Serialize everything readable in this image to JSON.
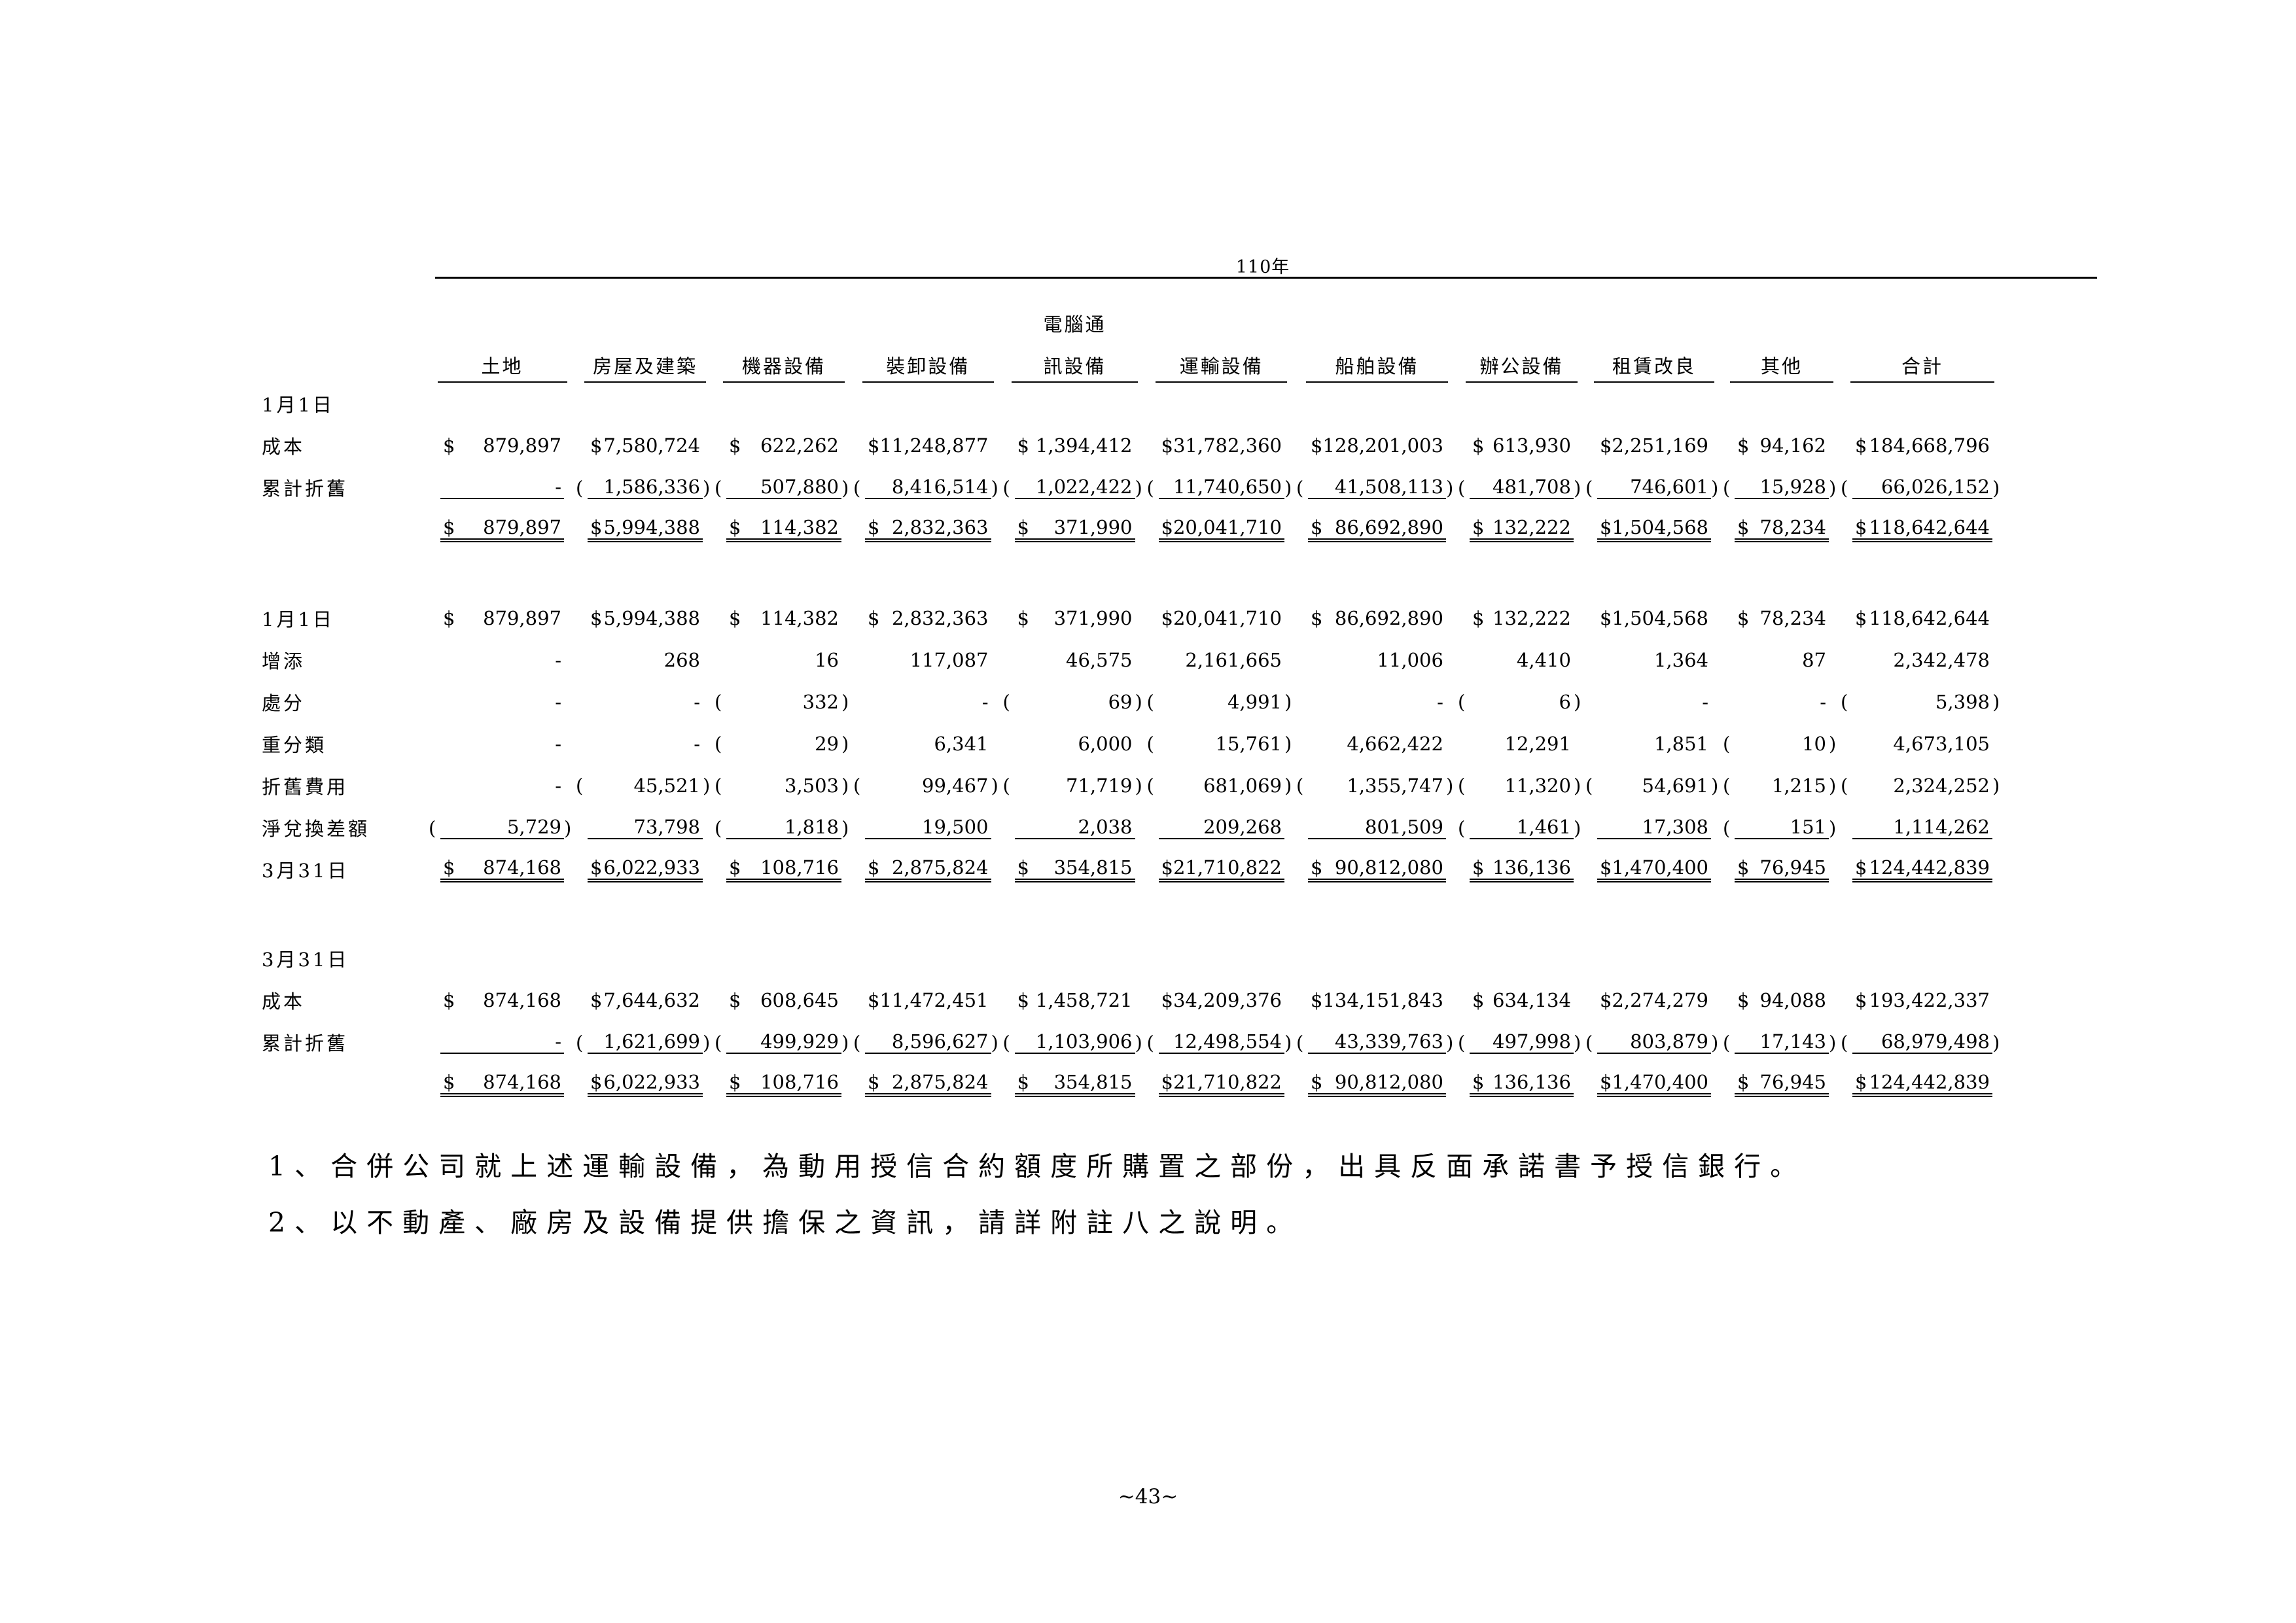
{
  "year_title": "110年",
  "columns": [
    {
      "top": "",
      "bottom": "土地"
    },
    {
      "top": "",
      "bottom": "房屋及建築"
    },
    {
      "top": "",
      "bottom": "機器設備"
    },
    {
      "top": "",
      "bottom": "裝卸設備"
    },
    {
      "top": "電腦通",
      "bottom": "訊設備"
    },
    {
      "top": "",
      "bottom": "運輸設備"
    },
    {
      "top": "",
      "bottom": "船舶設備"
    },
    {
      "top": "",
      "bottom": "辦公設備"
    },
    {
      "top": "",
      "bottom": "租賃改良"
    },
    {
      "top": "",
      "bottom": "其他"
    },
    {
      "top": "",
      "bottom": "合計"
    }
  ],
  "sections": [
    {
      "rows": [
        {
          "label": "1月1日",
          "cells": []
        },
        {
          "label": "成本",
          "cells": [
            {
              "cur": "$",
              "v": "879,897"
            },
            {
              "cur": "$",
              "v": "7,580,724"
            },
            {
              "cur": "$",
              "v": "622,262"
            },
            {
              "cur": "$",
              "v": "11,248,877"
            },
            {
              "cur": "$",
              "v": "1,394,412"
            },
            {
              "cur": "$",
              "v": "31,782,360"
            },
            {
              "cur": "$",
              "v": "128,201,003"
            },
            {
              "cur": "$",
              "v": "613,930"
            },
            {
              "cur": "$",
              "v": "2,251,169"
            },
            {
              "cur": "$",
              "v": "94,162"
            },
            {
              "cur": "$",
              "v": "184,668,796"
            }
          ]
        },
        {
          "label": "累計折舊",
          "line": "ul",
          "cells": [
            {
              "v": "-"
            },
            {
              "v": "1,586,336",
              "neg": true
            },
            {
              "v": "507,880",
              "neg": true
            },
            {
              "v": "8,416,514",
              "neg": true
            },
            {
              "v": "1,022,422",
              "neg": true
            },
            {
              "v": "11,740,650",
              "neg": true
            },
            {
              "v": "41,508,113",
              "neg": true
            },
            {
              "v": "481,708",
              "neg": true
            },
            {
              "v": "746,601",
              "neg": true
            },
            {
              "v": "15,928",
              "neg": true
            },
            {
              "v": "66,026,152",
              "neg": true
            }
          ]
        },
        {
          "label": "",
          "line": "dul",
          "cells": [
            {
              "cur": "$",
              "v": "879,897"
            },
            {
              "cur": "$",
              "v": "5,994,388"
            },
            {
              "cur": "$",
              "v": "114,382"
            },
            {
              "cur": "$",
              "v": "2,832,363"
            },
            {
              "cur": "$",
              "v": "371,990"
            },
            {
              "cur": "$",
              "v": "20,041,710"
            },
            {
              "cur": "$",
              "v": "86,692,890"
            },
            {
              "cur": "$",
              "v": "132,222"
            },
            {
              "cur": "$",
              "v": "1,504,568"
            },
            {
              "cur": "$",
              "v": "78,234"
            },
            {
              "cur": "$",
              "v": "118,642,644"
            }
          ]
        }
      ]
    },
    {
      "rows": [
        {
          "label": "1月1日",
          "cells": [
            {
              "cur": "$",
              "v": "879,897"
            },
            {
              "cur": "$",
              "v": "5,994,388"
            },
            {
              "cur": "$",
              "v": "114,382"
            },
            {
              "cur": "$",
              "v": "2,832,363"
            },
            {
              "cur": "$",
              "v": "371,990"
            },
            {
              "cur": "$",
              "v": "20,041,710"
            },
            {
              "cur": "$",
              "v": "86,692,890"
            },
            {
              "cur": "$",
              "v": "132,222"
            },
            {
              "cur": "$",
              "v": "1,504,568"
            },
            {
              "cur": "$",
              "v": "78,234"
            },
            {
              "cur": "$",
              "v": "118,642,644"
            }
          ]
        },
        {
          "label": "增添",
          "cells": [
            {
              "v": "-"
            },
            {
              "v": "268"
            },
            {
              "v": "16"
            },
            {
              "v": "117,087"
            },
            {
              "v": "46,575"
            },
            {
              "v": "2,161,665"
            },
            {
              "v": "11,006"
            },
            {
              "v": "4,410"
            },
            {
              "v": "1,364"
            },
            {
              "v": "87"
            },
            {
              "v": "2,342,478"
            }
          ]
        },
        {
          "label": "處分",
          "cells": [
            {
              "v": "-"
            },
            {
              "v": "-"
            },
            {
              "v": "332",
              "neg": true
            },
            {
              "v": "-"
            },
            {
              "v": "69",
              "neg": true
            },
            {
              "v": "4,991",
              "neg": true
            },
            {
              "v": "-"
            },
            {
              "v": "6",
              "neg": true
            },
            {
              "v": "-"
            },
            {
              "v": "-"
            },
            {
              "v": "5,398",
              "neg": true
            }
          ]
        },
        {
          "label": "重分類",
          "cells": [
            {
              "v": "-"
            },
            {
              "v": "-"
            },
            {
              "v": "29",
              "neg": true
            },
            {
              "v": "6,341"
            },
            {
              "v": "6,000"
            },
            {
              "v": "15,761",
              "neg": true
            },
            {
              "v": "4,662,422"
            },
            {
              "v": "12,291"
            },
            {
              "v": "1,851"
            },
            {
              "v": "10",
              "neg": true
            },
            {
              "v": "4,673,105"
            }
          ]
        },
        {
          "label": "折舊費用",
          "cells": [
            {
              "v": "-"
            },
            {
              "v": "45,521",
              "neg": true
            },
            {
              "v": "3,503",
              "neg": true
            },
            {
              "v": "99,467",
              "neg": true
            },
            {
              "v": "71,719",
              "neg": true
            },
            {
              "v": "681,069",
              "neg": true
            },
            {
              "v": "1,355,747",
              "neg": true
            },
            {
              "v": "11,320",
              "neg": true
            },
            {
              "v": "54,691",
              "neg": true
            },
            {
              "v": "1,215",
              "neg": true
            },
            {
              "v": "2,324,252",
              "neg": true
            }
          ]
        },
        {
          "label": "淨兌換差額",
          "line": "ul",
          "cells": [
            {
              "v": "5,729",
              "neg": true
            },
            {
              "v": "73,798"
            },
            {
              "v": "1,818",
              "neg": true
            },
            {
              "v": "19,500"
            },
            {
              "v": "2,038"
            },
            {
              "v": "209,268"
            },
            {
              "v": "801,509"
            },
            {
              "v": "1,461",
              "neg": true
            },
            {
              "v": "17,308"
            },
            {
              "v": "151",
              "neg": true
            },
            {
              "v": "1,114,262"
            }
          ]
        },
        {
          "label": "3月31日",
          "line": "dul",
          "cells": [
            {
              "cur": "$",
              "v": "874,168"
            },
            {
              "cur": "$",
              "v": "6,022,933"
            },
            {
              "cur": "$",
              "v": "108,716"
            },
            {
              "cur": "$",
              "v": "2,875,824"
            },
            {
              "cur": "$",
              "v": "354,815"
            },
            {
              "cur": "$",
              "v": "21,710,822"
            },
            {
              "cur": "$",
              "v": "90,812,080"
            },
            {
              "cur": "$",
              "v": "136,136"
            },
            {
              "cur": "$",
              "v": "1,470,400"
            },
            {
              "cur": "$",
              "v": "76,945"
            },
            {
              "cur": "$",
              "v": "124,442,839"
            }
          ]
        }
      ]
    },
    {
      "rows": [
        {
          "label": "3月31日",
          "cells": []
        },
        {
          "label": "成本",
          "cells": [
            {
              "cur": "$",
              "v": "874,168"
            },
            {
              "cur": "$",
              "v": "7,644,632"
            },
            {
              "cur": "$",
              "v": "608,645"
            },
            {
              "cur": "$",
              "v": "11,472,451"
            },
            {
              "cur": "$",
              "v": "1,458,721"
            },
            {
              "cur": "$",
              "v": "34,209,376"
            },
            {
              "cur": "$",
              "v": "134,151,843"
            },
            {
              "cur": "$",
              "v": "634,134"
            },
            {
              "cur": "$",
              "v": "2,274,279"
            },
            {
              "cur": "$",
              "v": "94,088"
            },
            {
              "cur": "$",
              "v": "193,422,337"
            }
          ]
        },
        {
          "label": "累計折舊",
          "line": "ul",
          "cells": [
            {
              "v": "-"
            },
            {
              "v": "1,621,699",
              "neg": true
            },
            {
              "v": "499,929",
              "neg": true
            },
            {
              "v": "8,596,627",
              "neg": true
            },
            {
              "v": "1,103,906",
              "neg": true
            },
            {
              "v": "12,498,554",
              "neg": true
            },
            {
              "v": "43,339,763",
              "neg": true
            },
            {
              "v": "497,998",
              "neg": true
            },
            {
              "v": "803,879",
              "neg": true
            },
            {
              "v": "17,143",
              "neg": true
            },
            {
              "v": "68,979,498",
              "neg": true
            }
          ]
        },
        {
          "label": "",
          "line": "dul",
          "cells": [
            {
              "cur": "$",
              "v": "874,168"
            },
            {
              "cur": "$",
              "v": "6,022,933"
            },
            {
              "cur": "$",
              "v": "108,716"
            },
            {
              "cur": "$",
              "v": "2,875,824"
            },
            {
              "cur": "$",
              "v": "354,815"
            },
            {
              "cur": "$",
              "v": "21,710,822"
            },
            {
              "cur": "$",
              "v": "90,812,080"
            },
            {
              "cur": "$",
              "v": "136,136"
            },
            {
              "cur": "$",
              "v": "1,470,400"
            },
            {
              "cur": "$",
              "v": "76,945"
            },
            {
              "cur": "$",
              "v": "124,442,839"
            }
          ]
        }
      ]
    }
  ],
  "notes": [
    "1、合併公司就上述運輸設備，為動用授信合約額度所購置之部份，出具反面承諾書予授信銀行。",
    "2、以不動產、廠房及設備提供擔保之資訊，請詳附註八之說明。"
  ],
  "page_number": "~43~"
}
